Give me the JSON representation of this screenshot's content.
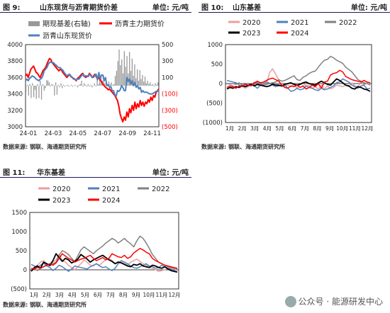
{
  "panels": [
    {
      "fig": "图 9:",
      "title": "山东现货与沥青期货价差",
      "unit": "单位: 元/吨",
      "source": "数据来源: 钢联、海通期货研究所"
    },
    {
      "fig": "图 10:",
      "title": "山东基差",
      "unit": "单位: 元/吨",
      "source": "数据来源: 钢联、海通期货研究所"
    },
    {
      "fig": "图 11:",
      "title": "华东基差",
      "unit": "单位: 元/吨",
      "source": "数据来源: 钢联、海通期货研究所"
    }
  ],
  "watermark": "公众号 · 能源研发中心",
  "colors": {
    "header_rule": "#1a1a5e"
  },
  "chart_data": [
    {
      "type": "bar",
      "chart": "fig9",
      "x_ticks": [
        "24-01",
        "24-03",
        "24-05",
        "24-07",
        "24-09",
        "24-11"
      ],
      "ylim_left": [
        3000,
        4000
      ],
      "yticks_left": [
        "3000",
        "3200",
        "3400",
        "3600",
        "3800",
        "4000"
      ],
      "ylim_right": [
        -500,
        500
      ],
      "yticks_right": [
        "(500)",
        "(300)",
        "(100)",
        "100",
        "300",
        "500"
      ],
      "series": [
        {
          "name": "期现基差(右轴)",
          "type": "bar",
          "axis": "right",
          "color": "#999999",
          "values": [
            -80,
            10,
            -120,
            20,
            -150,
            30,
            -140,
            -50,
            -160,
            20,
            -150,
            60,
            -170,
            20,
            -60,
            -30,
            70,
            60,
            40,
            -10,
            20,
            10,
            -120,
            40,
            -110,
            10,
            -20,
            30,
            -30,
            10,
            -10,
            0,
            10,
            -10,
            0,
            10,
            -10,
            0,
            10,
            0,
            -20,
            10,
            20,
            60,
            -10,
            30,
            10,
            -10,
            20,
            -10,
            10,
            -20,
            0,
            30,
            -10,
            70,
            20,
            80,
            110,
            60,
            120,
            30,
            60,
            20,
            50,
            20,
            40,
            10,
            20,
            120,
            180,
            300,
            440,
            250,
            320,
            150,
            420,
            230,
            360,
            150,
            410,
            180,
            330,
            120,
            260,
            90,
            200,
            60,
            190,
            80,
            130,
            50,
            110,
            30,
            60,
            20,
            40,
            10,
            20,
            -10,
            30,
            10,
            40
          ]
        },
        {
          "name": "沥青主力期货价",
          "type": "line",
          "axis": "left",
          "color": "#ff0000",
          "values": [
            3620,
            3640,
            3600,
            3650,
            3700,
            3720,
            3740,
            3700,
            3660,
            3650,
            3620,
            3600,
            3640,
            3680,
            3700,
            3720,
            3760,
            3800,
            3830,
            3820,
            3780,
            3760,
            3740,
            3720,
            3700,
            3680,
            3700,
            3690,
            3660,
            3640,
            3620,
            3600,
            3620,
            3640,
            3610,
            3600,
            3590,
            3580,
            3560,
            3590,
            3600,
            3620,
            3640,
            3650,
            3620,
            3600,
            3610,
            3620,
            3650,
            3630,
            3600,
            3620,
            3640,
            3610,
            3580,
            3600,
            3570,
            3550,
            3520,
            3500,
            3480,
            3470,
            3450,
            3460,
            3440,
            3420,
            3400,
            3380,
            3350,
            3320,
            3250,
            3150,
            3100,
            3060,
            3120,
            3080,
            3180,
            3120,
            3220,
            3170,
            3260,
            3200,
            3300,
            3220,
            3280,
            3240,
            3320,
            3260,
            3300,
            3250,
            3300,
            3280,
            3330,
            3300,
            3360,
            3320,
            3380,
            3360,
            3420,
            3440,
            3460
          ]
        },
        {
          "name": "沥青山东现货价",
          "type": "line",
          "axis": "left",
          "color": "#4f81bd",
          "values": [
            3560,
            3580,
            3560,
            3590,
            3600,
            3620,
            3610,
            3600,
            3580,
            3570,
            3560,
            3580,
            3590,
            3620,
            3680,
            3700,
            3720,
            3760,
            3780,
            3790,
            3780,
            3780,
            3760,
            3750,
            3730,
            3720,
            3720,
            3700,
            3690,
            3660,
            3640,
            3620,
            3630,
            3640,
            3620,
            3600,
            3580,
            3580,
            3570,
            3580,
            3580,
            3600,
            3620,
            3640,
            3610,
            3620,
            3620,
            3610,
            3640,
            3620,
            3610,
            3600,
            3630,
            3640,
            3570,
            3660,
            3590,
            3630,
            3630,
            3560,
            3600,
            3500,
            3510,
            3480,
            3490,
            3440,
            3440,
            3390,
            3370,
            3440,
            3430,
            3450,
            3500,
            3480,
            3440,
            3440,
            3600,
            3550,
            3580,
            3520,
            3560,
            3500,
            3540,
            3480,
            3500,
            3460,
            3480,
            3420,
            3440,
            3420,
            3420,
            3420,
            3410,
            3400,
            3400,
            3400,
            3410,
            3420,
            3430,
            3430,
            3450
          ]
        }
      ]
    },
    {
      "type": "line",
      "chart": "fig10",
      "x_ticks": [
        "1月",
        "2月",
        "3月",
        "4月",
        "5月",
        "6月",
        "7月",
        "8月",
        "9月",
        "10月",
        "11月",
        "12月"
      ],
      "ylim": [
        -1000,
        1000
      ],
      "yticks": [
        "(1000)",
        "(500)",
        "0",
        "500",
        "1000"
      ],
      "series": [
        {
          "name": "2020",
          "color": "#e8a0a0",
          "values": [
            0,
            -20,
            -60,
            -80,
            -100,
            -60,
            -120,
            -80,
            -20,
            40,
            -40,
            -30,
            20,
            10,
            280,
            380,
            240,
            100,
            -80,
            -60,
            -40,
            -80,
            -20,
            -120,
            -20,
            0,
            -60,
            -40,
            -120,
            -80,
            -140,
            -40,
            -140,
            -60,
            -140,
            -100,
            -40,
            -60,
            -80,
            -40,
            -80,
            20,
            -60,
            -80,
            40,
            -40,
            20,
            -20
          ]
        },
        {
          "name": "2021",
          "color": "#4f81bd",
          "values": [
            80,
            60,
            40,
            20,
            -40,
            -60,
            -80,
            -60,
            -20,
            -60,
            -120,
            -40,
            0,
            40,
            10,
            -40,
            -80,
            -60,
            -60,
            -40,
            -120,
            -200,
            -180,
            -120,
            -160,
            -140,
            -60,
            -100,
            -120,
            -160,
            -180,
            -120,
            -160,
            -140,
            -100,
            -60,
            20,
            40,
            120,
            80,
            40,
            -40,
            -80,
            -120,
            -60,
            -40,
            -140,
            -120
          ]
        },
        {
          "name": "2022",
          "color": "#808080",
          "values": [
            0,
            0,
            0,
            -20,
            20,
            -40,
            -20,
            -60,
            0,
            -20,
            40,
            20,
            -40,
            -20,
            0,
            20,
            40,
            100,
            60,
            80,
            120,
            160,
            200,
            100,
            80,
            160,
            200,
            260,
            300,
            320,
            420,
            520,
            600,
            620,
            700,
            660,
            600,
            560,
            520,
            420,
            360,
            300,
            200,
            100,
            60,
            20,
            0,
            -40
          ]
        },
        {
          "name": "2023",
          "color": "#000000",
          "values": [
            -140,
            -100,
            -120,
            -80,
            -100,
            -60,
            -80,
            -40,
            -20,
            -60,
            -20,
            -40,
            -60,
            -80,
            -60,
            -20,
            -40,
            -40,
            -60,
            -20,
            0,
            20,
            -20,
            -40,
            -20,
            20,
            40,
            0,
            -20,
            -40,
            20,
            60,
            20,
            -20,
            -40,
            40,
            120,
            80,
            20,
            -40,
            -60,
            -120,
            -140,
            -80,
            -100,
            -140,
            -160,
            -200
          ]
        },
        {
          "name": "2024",
          "color": "#ff0000",
          "values": [
            -100,
            -60,
            -80,
            -120,
            -60,
            -80,
            -20,
            -40,
            -60,
            20,
            60,
            20,
            40,
            80,
            120,
            140,
            100,
            60,
            -40,
            -100,
            -120,
            -60,
            -80,
            -40,
            -100,
            -60,
            -140,
            -100,
            -40,
            -80,
            0,
            -120,
            40,
            60,
            220,
            260,
            280,
            340,
            300,
            180,
            140,
            100,
            80,
            60,
            40,
            80,
            40,
            20
          ]
        }
      ]
    },
    {
      "type": "line",
      "chart": "fig11",
      "x_ticks": [
        "1月",
        "2月",
        "3月",
        "4月",
        "5月",
        "6月",
        "7月",
        "8月",
        "9月",
        "10月",
        "11月",
        "12月"
      ],
      "ylim": [
        -500,
        1500
      ],
      "yticks": [
        "(500)",
        "0",
        "500",
        "1000",
        "1500"
      ],
      "series": [
        {
          "name": "2020",
          "color": "#e8a0a0",
          "values": [
            0,
            60,
            120,
            200,
            240,
            160,
            120,
            200,
            260,
            400,
            240,
            200,
            120,
            60,
            0,
            80,
            160,
            260,
            200,
            120,
            100,
            160,
            120,
            200,
            260,
            300,
            240,
            160,
            220,
            200,
            160,
            120,
            200,
            240,
            280,
            220,
            160,
            120,
            60,
            40,
            0,
            -40,
            -20,
            0,
            40,
            60,
            20,
            -20
          ]
        },
        {
          "name": "2021",
          "color": "#4f81bd",
          "values": [
            140,
            100,
            60,
            120,
            180,
            100,
            60,
            -20,
            40,
            120,
            80,
            20,
            -40,
            20,
            100,
            80,
            60,
            40,
            20,
            80,
            120,
            160,
            100,
            60,
            80,
            20,
            -20,
            40,
            160,
            240,
            200,
            160,
            100,
            60,
            40,
            80,
            120,
            160,
            100,
            80,
            40,
            60,
            120,
            80,
            40,
            20,
            -20,
            -60
          ]
        },
        {
          "name": "2022",
          "color": "#808080",
          "values": [
            0,
            20,
            -20,
            40,
            80,
            140,
            100,
            160,
            200,
            380,
            500,
            460,
            400,
            300,
            220,
            360,
            520,
            600,
            540,
            480,
            420,
            500,
            560,
            620,
            700,
            760,
            820,
            780,
            700,
            760,
            820,
            740,
            680,
            600,
            760,
            880,
            820,
            700,
            560,
            400,
            300,
            200,
            160,
            120,
            80,
            60,
            40,
            20
          ]
        },
        {
          "name": "2023",
          "color": "#000000",
          "values": [
            -40,
            60,
            100,
            40,
            200,
            160,
            120,
            240,
            420,
            320,
            220,
            300,
            260,
            180,
            220,
            280,
            400,
            340,
            280,
            200,
            260,
            300,
            340,
            380,
            320,
            260,
            220,
            160,
            200,
            180,
            140,
            100,
            80,
            140,
            120,
            160,
            100,
            80,
            60,
            120,
            100,
            60,
            40,
            80,
            20,
            -20,
            -40,
            -60
          ]
        },
        {
          "name": "2024",
          "color": "#ff0000",
          "values": [
            40,
            20,
            60,
            40,
            80,
            120,
            160,
            120,
            180,
            300,
            420,
            360,
            300,
            260,
            200,
            240,
            280,
            300,
            340,
            380,
            300,
            240,
            280,
            320,
            260,
            300,
            420,
            380,
            340,
            320,
            380,
            300,
            340,
            440,
            500,
            560,
            520,
            460,
            420,
            300,
            240,
            200,
            160,
            120,
            100,
            80,
            60,
            40
          ]
        }
      ]
    }
  ]
}
